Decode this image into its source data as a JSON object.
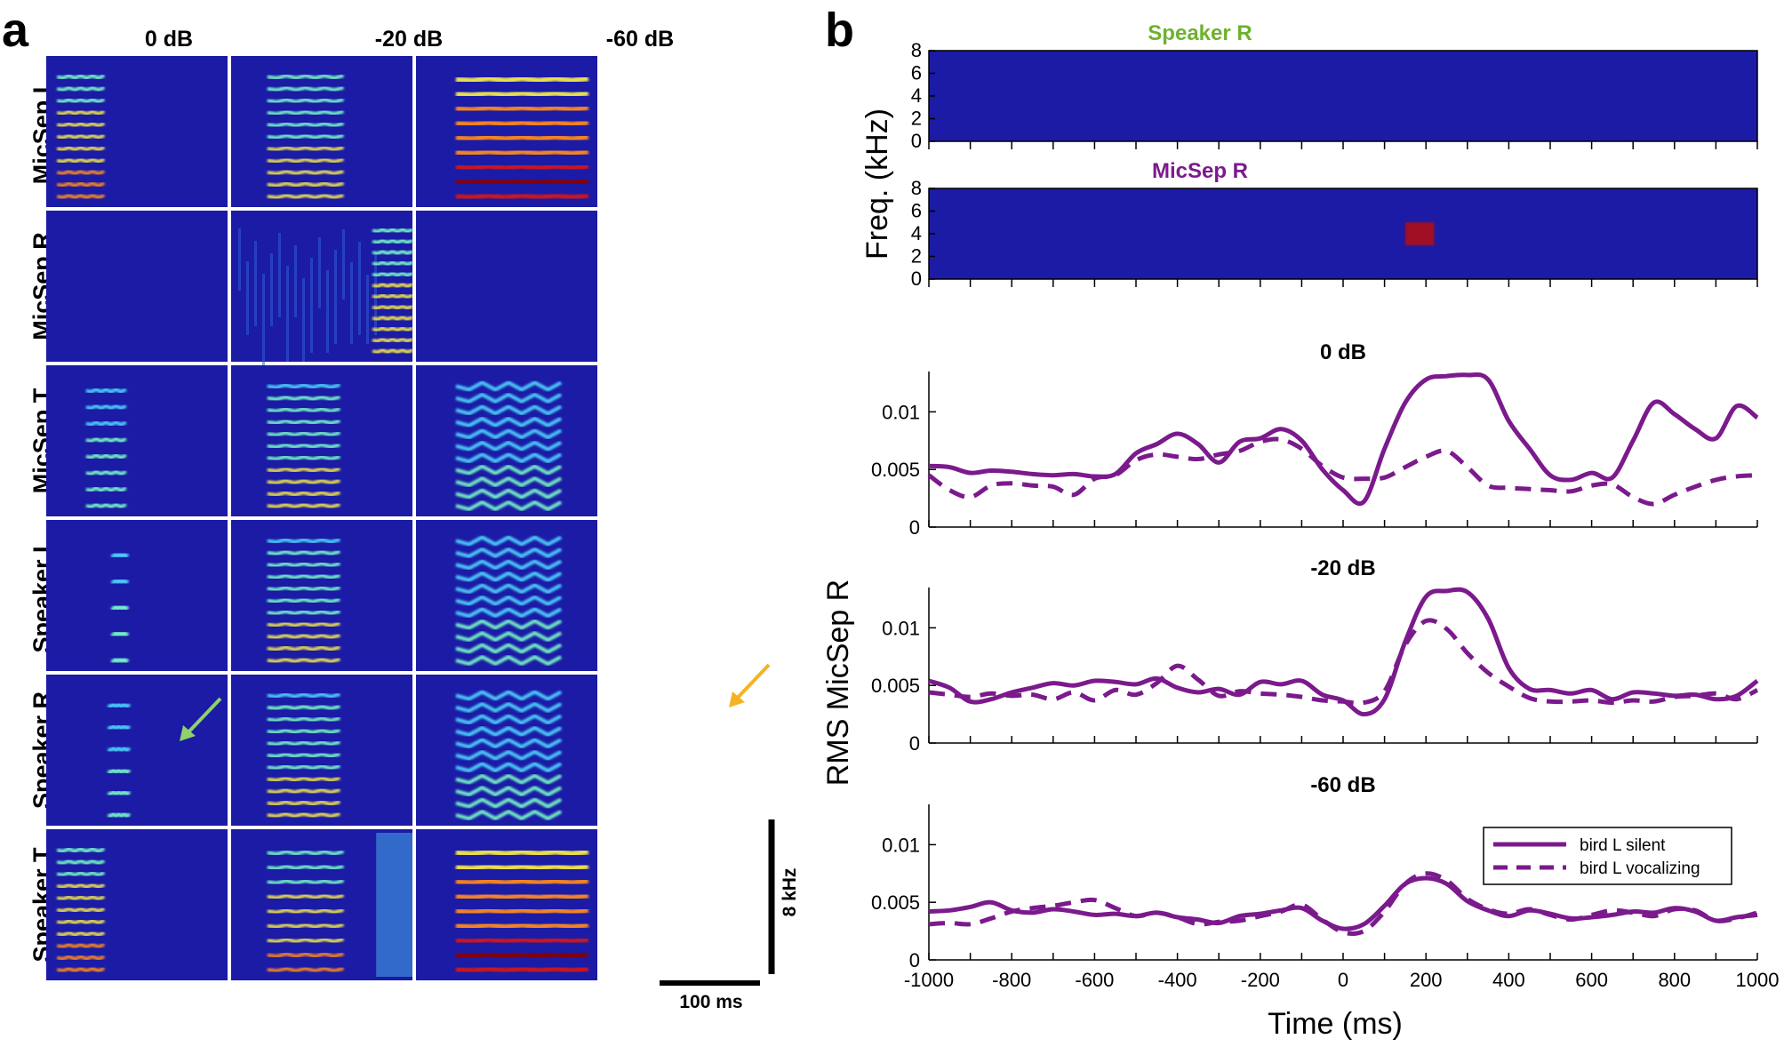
{
  "panel_a": {
    "letter": "a",
    "columns": [
      "0 dB",
      "-20 dB",
      "-60 dB"
    ],
    "rows": [
      "MicSep L",
      "MicSep R",
      "MicSep T",
      "Speaker L",
      "Speaker R",
      "Speaker T"
    ],
    "scale_vertical": "8 kHz",
    "scale_horizontal": "100 ms",
    "arrow_colors": {
      "green": "#8fd16a",
      "orange": "#f5b323"
    }
  },
  "panel_b": {
    "letter": "b",
    "spectro_titles": [
      {
        "text": "Speaker R",
        "color": "#6fb12e"
      },
      {
        "text": "MicSep R",
        "color": "#7b1a8c"
      }
    ],
    "freq_label": "Freq.  (kHz)",
    "freq_ticks": [
      "0",
      "2",
      "4",
      "6",
      "8"
    ],
    "y_label": "RMS MicSep R",
    "y_label_color": "#7b1a8c",
    "x_label": "Time (ms)",
    "x_ticks": [
      "-1000",
      "-800",
      "-600",
      "-400",
      "-200",
      "0",
      "200",
      "400",
      "600",
      "800",
      "1000"
    ],
    "y_ticks": [
      "0",
      "0.005",
      "0.01"
    ],
    "legend": [
      "bird L silent",
      "bird L vocalizing"
    ]
  },
  "chart_data": [
    {
      "type": "line",
      "title": "0 dB",
      "xlabel": "Time (ms)",
      "ylabel": "RMS MicSep R",
      "xlim": [
        -1000,
        1000
      ],
      "ylim": [
        0,
        0.0135
      ],
      "x": [
        -1000,
        -950,
        -900,
        -850,
        -800,
        -750,
        -700,
        -650,
        -600,
        -550,
        -500,
        -450,
        -400,
        -350,
        -300,
        -250,
        -200,
        -150,
        -100,
        -50,
        0,
        50,
        100,
        150,
        200,
        250,
        300,
        350,
        400,
        450,
        500,
        550,
        600,
        650,
        700,
        750,
        800,
        850,
        900,
        950,
        1000
      ],
      "series": [
        {
          "name": "bird L silent",
          "style": "solid",
          "color": "#7b1a8c",
          "values": [
            0.0053,
            0.0052,
            0.0047,
            0.0049,
            0.0048,
            0.0046,
            0.0045,
            0.0046,
            0.0044,
            0.0046,
            0.0064,
            0.0072,
            0.0081,
            0.0072,
            0.0056,
            0.0074,
            0.0077,
            0.0085,
            0.0075,
            0.005,
            0.0032,
            0.0022,
            0.0068,
            0.0108,
            0.0128,
            0.0131,
            0.0132,
            0.0128,
            0.0092,
            0.0068,
            0.0045,
            0.0041,
            0.0047,
            0.0043,
            0.0075,
            0.0108,
            0.0098,
            0.0085,
            0.0077,
            0.0105,
            0.0095
          ]
        },
        {
          "name": "bird L vocalizing",
          "style": "dashed",
          "color": "#7b1a8c",
          "values": [
            0.0045,
            0.0032,
            0.0026,
            0.0036,
            0.0038,
            0.0036,
            0.0035,
            0.0028,
            0.0042,
            0.0045,
            0.0058,
            0.0063,
            0.0061,
            0.0059,
            0.0063,
            0.0066,
            0.0074,
            0.0076,
            0.0068,
            0.0053,
            0.0043,
            0.0042,
            0.0043,
            0.0052,
            0.0061,
            0.0066,
            0.0052,
            0.0036,
            0.0034,
            0.0033,
            0.0032,
            0.0031,
            0.0036,
            0.0037,
            0.0026,
            0.002,
            0.0028,
            0.0035,
            0.0041,
            0.0044,
            0.0045
          ]
        }
      ]
    },
    {
      "type": "line",
      "title": "-20 dB",
      "xlabel": "Time (ms)",
      "ylabel": "RMS MicSep R",
      "xlim": [
        -1000,
        1000
      ],
      "ylim": [
        0,
        0.0135
      ],
      "x": [
        -1000,
        -950,
        -900,
        -850,
        -800,
        -750,
        -700,
        -650,
        -600,
        -550,
        -500,
        -450,
        -400,
        -350,
        -300,
        -250,
        -200,
        -150,
        -100,
        -50,
        0,
        50,
        100,
        150,
        200,
        250,
        300,
        350,
        400,
        450,
        500,
        550,
        600,
        650,
        700,
        750,
        800,
        850,
        900,
        950,
        1000
      ],
      "series": [
        {
          "name": "bird L silent",
          "style": "solid",
          "color": "#7b1a8c",
          "values": [
            0.0054,
            0.0048,
            0.0036,
            0.0038,
            0.0044,
            0.0048,
            0.0052,
            0.005,
            0.0054,
            0.0053,
            0.0051,
            0.0056,
            0.0048,
            0.0044,
            0.0047,
            0.0042,
            0.0053,
            0.0051,
            0.0054,
            0.0042,
            0.0037,
            0.0025,
            0.0038,
            0.0088,
            0.0127,
            0.0132,
            0.0131,
            0.0108,
            0.0065,
            0.0047,
            0.0046,
            0.0043,
            0.0046,
            0.0038,
            0.0044,
            0.0043,
            0.0041,
            0.0042,
            0.0038,
            0.0041,
            0.0054
          ]
        },
        {
          "name": "bird L vocalizing",
          "style": "dashed",
          "color": "#7b1a8c",
          "values": [
            0.0044,
            0.0042,
            0.004,
            0.0043,
            0.0041,
            0.0042,
            0.0038,
            0.0044,
            0.0037,
            0.0046,
            0.0042,
            0.0052,
            0.0067,
            0.0055,
            0.0041,
            0.0045,
            0.0043,
            0.0042,
            0.004,
            0.0037,
            0.0036,
            0.0035,
            0.0045,
            0.0085,
            0.0106,
            0.0099,
            0.0078,
            0.0061,
            0.0049,
            0.0039,
            0.0036,
            0.0036,
            0.0037,
            0.0035,
            0.0037,
            0.0036,
            0.004,
            0.0041,
            0.0043,
            0.0038,
            0.0046
          ]
        }
      ]
    },
    {
      "type": "line",
      "title": "-60 dB",
      "xlabel": "Time (ms)",
      "ylabel": "RMS MicSep R",
      "xlim": [
        -1000,
        1000
      ],
      "ylim": [
        0,
        0.0135
      ],
      "x": [
        -1000,
        -950,
        -900,
        -850,
        -800,
        -750,
        -700,
        -650,
        -600,
        -550,
        -500,
        -450,
        -400,
        -350,
        -300,
        -250,
        -200,
        -150,
        -100,
        -50,
        0,
        50,
        100,
        150,
        200,
        250,
        300,
        350,
        400,
        450,
        500,
        550,
        600,
        650,
        700,
        750,
        800,
        850,
        900,
        950,
        1000
      ],
      "series": [
        {
          "name": "bird L silent",
          "style": "solid",
          "color": "#7b1a8c",
          "values": [
            0.0042,
            0.0043,
            0.0046,
            0.005,
            0.0043,
            0.0041,
            0.0044,
            0.0042,
            0.0039,
            0.004,
            0.0038,
            0.0041,
            0.0037,
            0.0035,
            0.0032,
            0.0038,
            0.004,
            0.0043,
            0.0045,
            0.0034,
            0.0027,
            0.0031,
            0.0047,
            0.0066,
            0.0071,
            0.0066,
            0.0051,
            0.0043,
            0.0038,
            0.0043,
            0.004,
            0.0036,
            0.0037,
            0.0039,
            0.0042,
            0.0041,
            0.0045,
            0.0042,
            0.0034,
            0.0037,
            0.0039
          ]
        },
        {
          "name": "bird L vocalizing",
          "style": "dashed",
          "color": "#7b1a8c",
          "values": [
            0.0031,
            0.0032,
            0.0031,
            0.0036,
            0.0042,
            0.0045,
            0.0047,
            0.005,
            0.0052,
            0.0045,
            0.0038,
            0.0041,
            0.0037,
            0.0031,
            0.0033,
            0.0034,
            0.0038,
            0.0042,
            0.0048,
            0.0035,
            0.0024,
            0.0025,
            0.0042,
            0.0066,
            0.0075,
            0.0069,
            0.0053,
            0.0044,
            0.004,
            0.0044,
            0.0039,
            0.0035,
            0.0039,
            0.0043,
            0.0041,
            0.0038,
            0.0044,
            0.0043,
            0.0034,
            0.0036,
            0.0041
          ]
        }
      ]
    }
  ]
}
